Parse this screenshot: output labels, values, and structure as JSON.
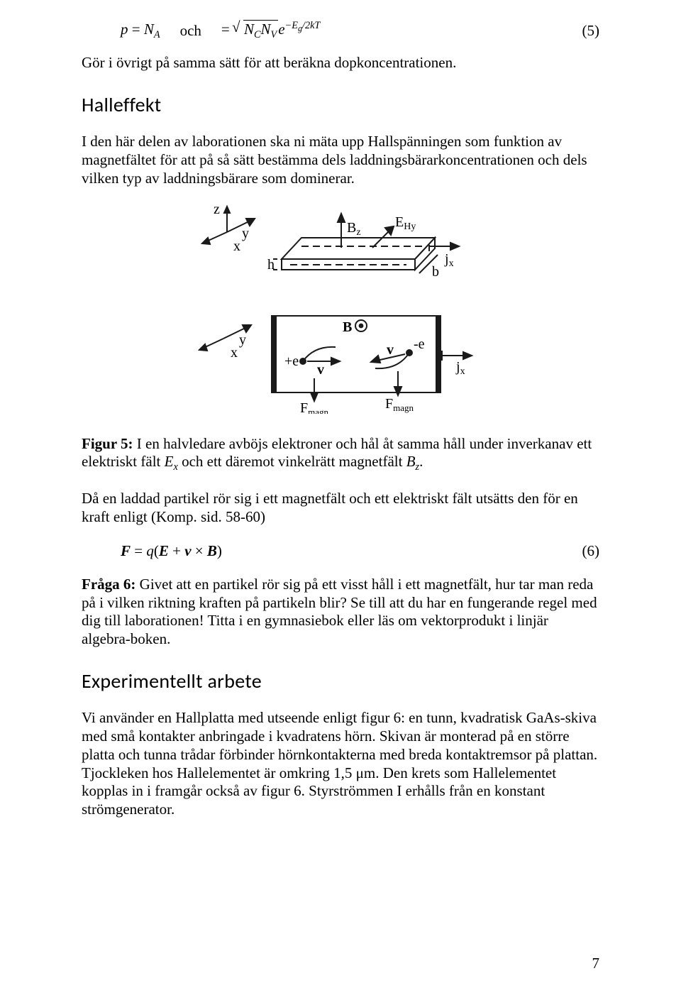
{
  "equation5": {
    "lhs_html": "<span class='math'>p</span> = <span class='math'>N<span class='sub'>A</span></span>",
    "och": "och",
    "rhs_html": "= <span class='sqrt'><span class='bar'><span class='math'>N<span class='sub'>C</span>N<span class='sub'>V</span></span></span></span><span class='math'>e<span class='sup'>&minus;E<span class='sub' style='font-size:0.85em'>g</span>/2kT</span></span>",
    "num": "(5)"
  },
  "p1": "Gör i övrigt på samma sätt för att beräkna dopkoncentrationen.",
  "h_hall": "Halleffekt",
  "p2": "I den här delen av laborationen ska ni mäta upp Hallspänningen som funktion av magnetfältet för att på så sätt bestämma dels laddningsbärarkoncentrationen och dels vilken typ av laddningsbärare som dominerar.",
  "figure": {
    "labels": {
      "z": "z",
      "y": "y",
      "x": "x",
      "Bz": "B",
      "Bz_sub": "z",
      "EHy": "E",
      "EHy_sub": "Hy",
      "jx": "j",
      "jx_sub": "x",
      "h": "h",
      "b": "b",
      "B": "B",
      "plus_e": "+e",
      "minus_e": "-e",
      "v": "v",
      "Fmagn": "F",
      "Fmagn_sub": "magn"
    },
    "colors": {
      "stroke": "#1a1a1a",
      "text": "#000000",
      "bg": "#ffffff"
    }
  },
  "fig5_label": "Figur 5:",
  "fig5_text_html": " I en halvledare avböjs elektroner och hål åt samma håll under inverkanav ett elektriskt fält <span class='math'>E<span class='sub'>x</span></span> och ett däremot vinkelrätt magnetfält <span class='math'>B<span class='sub'>z</span></span>.",
  "p4": "Då en laddad partikel rör sig i ett magnetfält och ett elektriskt fält utsätts den för en kraft enligt (Komp. sid. 58-60)",
  "equation6": {
    "body_html": "<span class='math bold'>F</span> = <span class='math'>q</span>(<span class='math bold'>E</span> + <span class='math bold'>v</span> &times; <span class='math bold'>B</span>)",
    "num": "(6)"
  },
  "q6_label": "Fråga 6:",
  "q6_text": " Givet att en partikel rör sig på ett visst håll i ett magnetfält, hur tar man reda på i vilken riktning kraften på partikeln blir? Se till att du har en fungerande regel med dig till laborationen! Titta i en gymnasiebok eller läs om vektorprodukt i linjär algebra-boken.",
  "h_exp": "Experimentellt arbete",
  "p6": "Vi använder en Hallplatta med utseende enligt figur 6: en tunn, kvadratisk GaAs-skiva med små kontakter anbringade i kvadratens hörn. Skivan är monterad på en större platta och tunna trådar förbinder hörnkontakterna med breda kontaktremsor på plattan. Tjockleken hos Hallelementet är omkring 1,5 μm. Den krets som Hallelementet kopplas in i framgår också av figur 6. Styrströmmen I erhålls från en konstant strömgenerator.",
  "page_number": "7"
}
